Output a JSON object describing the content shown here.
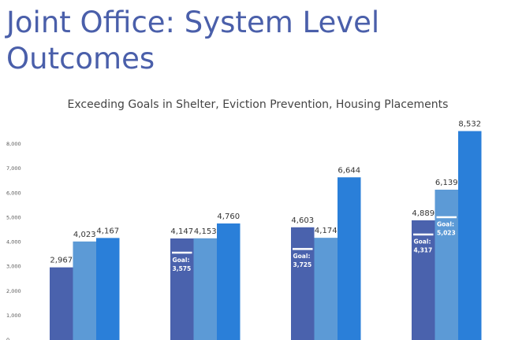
{
  "slide": {
    "title": "Joint Office: System Level Outcomes"
  },
  "colors": {
    "title": "#4a5faa",
    "series": [
      "#4a62ad",
      "#5c9ad6",
      "#2a7fd9"
    ],
    "goal_marker": "#ffffff"
  },
  "chart_data": {
    "type": "bar",
    "title": "Exceeding Goals in Shelter, Eviction Prevention, Housing Placements",
    "xlabel": "",
    "ylabel": "",
    "ylim": [
      0,
      9000
    ],
    "y_ticks": [
      "0",
      "1,000",
      "2,000",
      "3,000",
      "4,000",
      "5,000",
      "6,000",
      "7,000",
      "8,000"
    ],
    "grid": false,
    "legend": "none",
    "categories": [
      "",
      "",
      "",
      ""
    ],
    "series": [
      {
        "values": [
          2967,
          4147,
          4603,
          4889
        ],
        "labels": [
          "2,967",
          "4,147",
          "4,603",
          "4,889"
        ]
      },
      {
        "values": [
          4023,
          4153,
          4174,
          6139
        ],
        "labels": [
          "4,023",
          "4,153",
          "4,174",
          "6,139"
        ]
      },
      {
        "values": [
          4167,
          4760,
          6644,
          8532
        ],
        "labels": [
          "4,167",
          "4,760",
          "6,644",
          "8,532"
        ]
      }
    ],
    "goals": [
      {
        "group": 1,
        "series": 0,
        "value": 3575,
        "label": "Goal:",
        "value_label": "3,575"
      },
      {
        "group": 2,
        "series": 0,
        "value": 3725,
        "label": "Goal:",
        "value_label": "3,725"
      },
      {
        "group": 3,
        "series": 0,
        "value": 4317,
        "label": "Goal:",
        "value_label": "4,317"
      },
      {
        "group": 3,
        "series": 1,
        "value": 5023,
        "label": "Goal:",
        "value_label": "5,023"
      }
    ]
  }
}
